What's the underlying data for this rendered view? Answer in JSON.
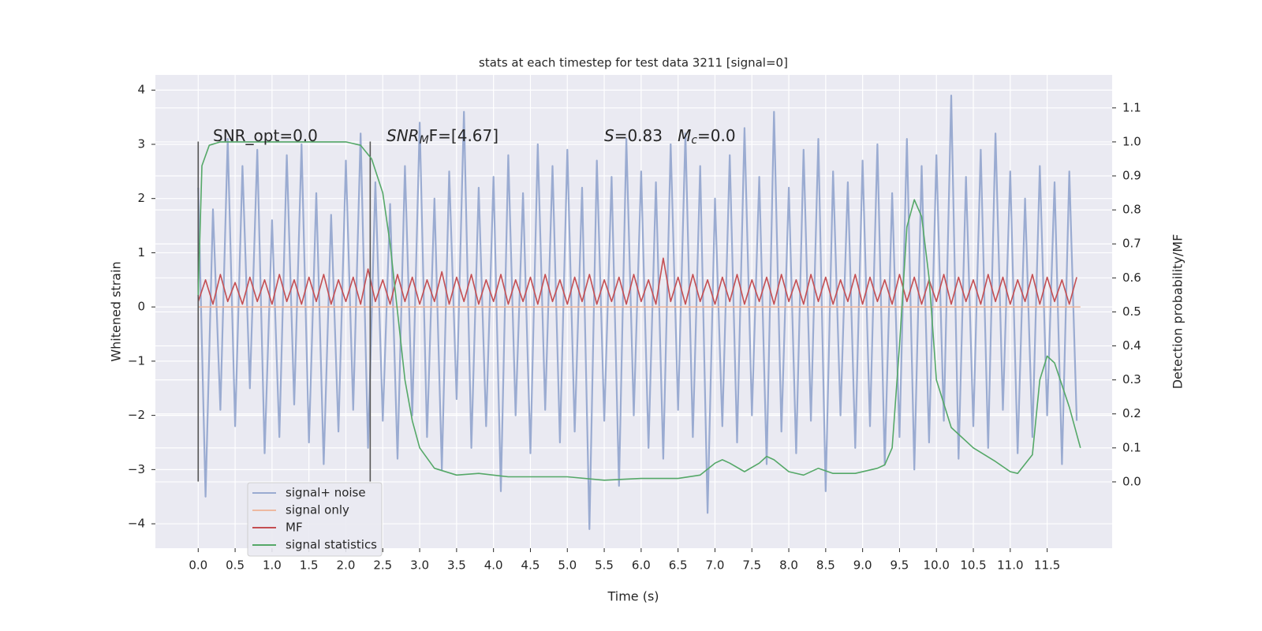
{
  "chart_data": {
    "type": "line",
    "title": "stats at each timestep for test data 3211 [signal=0]",
    "xlabel": "Time (s)",
    "ylabel": "Whitened strain",
    "y2label": "Detection probability/MF",
    "xlim": [
      -0.58,
      12.38
    ],
    "ylim": [
      -4.45,
      4.28
    ],
    "y2lim": [
      -0.195,
      1.197
    ],
    "xticks": [
      {
        "value": 0,
        "label": "0.0"
      },
      0.5,
      {
        "value": 1,
        "label": "1.0"
      },
      1.5,
      {
        "value": 2,
        "label": "2.0"
      },
      2.5,
      {
        "value": 3,
        "label": "3.0"
      },
      3.5,
      {
        "value": 4,
        "label": "4.0"
      },
      4.5,
      {
        "value": 5,
        "label": "5.0"
      },
      5.5,
      {
        "value": 6,
        "label": "6.0"
      },
      6.5,
      {
        "value": 7,
        "label": "7.0"
      },
      7.5,
      {
        "value": 8,
        "label": "8.0"
      },
      8.5,
      {
        "value": 9,
        "label": "9.0"
      },
      9.5,
      {
        "value": 10,
        "label": "10.0"
      },
      10.5,
      {
        "value": 11,
        "label": "11.0"
      },
      11.5
    ],
    "yticks": [
      {
        "value": -4,
        "label": "−4"
      },
      {
        "value": -3,
        "label": "−3"
      },
      {
        "value": -2,
        "label": "−2"
      },
      {
        "value": -1,
        "label": "−1"
      },
      0,
      1,
      2,
      3,
      4
    ],
    "y2ticks": [
      {
        "value": 0,
        "label": "0.0"
      },
      0.1,
      0.2,
      0.3,
      0.4,
      0.5,
      0.6,
      0.7,
      0.8,
      0.9,
      {
        "value": 1,
        "label": "1.0"
      },
      1.1
    ],
    "grid": true,
    "x": [
      0,
      0.1,
      0.2,
      0.3,
      0.4,
      0.5,
      0.6,
      0.7,
      0.8,
      0.9,
      1,
      1.1,
      1.2,
      1.3,
      1.4,
      1.5,
      1.6,
      1.7,
      1.8,
      1.9,
      2,
      2.1,
      2.2,
      2.3,
      2.4,
      2.5,
      2.6,
      2.7,
      2.8,
      2.9,
      3,
      3.1,
      3.2,
      3.3,
      3.4,
      3.5,
      3.6,
      3.7,
      3.8,
      3.9,
      4,
      4.1,
      4.2,
      4.3,
      4.4,
      4.5,
      4.6,
      4.7,
      4.8,
      4.9,
      5,
      5.1,
      5.2,
      5.3,
      5.4,
      5.5,
      5.6,
      5.7,
      5.8,
      5.9,
      6,
      6.1,
      6.2,
      6.3,
      6.4,
      6.5,
      6.6,
      6.7,
      6.8,
      6.9,
      7,
      7.1,
      7.2,
      7.3,
      7.4,
      7.5,
      7.6,
      7.7,
      7.8,
      7.9,
      8,
      8.1,
      8.2,
      8.3,
      8.4,
      8.5,
      8.6,
      8.7,
      8.8,
      8.9,
      9,
      9.1,
      9.2,
      9.3,
      9.4,
      9.5,
      9.6,
      9.7,
      9.8,
      9.9,
      10,
      10.1,
      10.2,
      10.3,
      10.4,
      10.5,
      10.6,
      10.7,
      10.8,
      10.9,
      11,
      11.1,
      11.2,
      11.3,
      11.4,
      11.5,
      11.6,
      11.7,
      11.8,
      11.9
    ],
    "series": [
      {
        "name": "signal+ noise",
        "color": "#9aabd1",
        "values": [
          2.2,
          -3.5,
          1.8,
          -1.9,
          3.1,
          -2.2,
          2.6,
          -1.5,
          2.9,
          -2.7,
          1.6,
          -2.4,
          2.8,
          -1.8,
          3.0,
          -2.5,
          2.1,
          -2.9,
          1.7,
          -2.3,
          2.7,
          -1.9,
          3.2,
          -2.6,
          2.3,
          -2.1,
          1.9,
          -2.8,
          2.6,
          -2.0,
          3.4,
          -2.4,
          2.0,
          -3.0,
          2.5,
          -1.7,
          3.6,
          -2.6,
          2.2,
          -2.2,
          2.4,
          -3.4,
          2.8,
          -2.0,
          2.1,
          -2.7,
          3.0,
          -1.9,
          2.6,
          -2.5,
          2.9,
          -2.3,
          2.2,
          -4.1,
          2.7,
          -2.1,
          2.4,
          -3.3,
          3.1,
          -2.0,
          2.5,
          -2.6,
          2.3,
          -2.8,
          3.0,
          -1.9,
          3.2,
          -2.4,
          2.6,
          -3.8,
          2.0,
          -2.2,
          2.8,
          -2.5,
          3.3,
          -2.0,
          2.4,
          -2.9,
          3.6,
          -2.3,
          2.2,
          -2.7,
          2.9,
          -2.1,
          3.1,
          -3.4,
          2.5,
          -2.0,
          2.3,
          -2.6,
          2.7,
          -2.2,
          3.0,
          -2.9,
          2.1,
          -2.4,
          3.1,
          -3.0,
          2.6,
          -2.5,
          2.8,
          -2.1,
          3.9,
          -2.8,
          2.4,
          -2.2,
          2.9,
          -2.6,
          3.2,
          -1.9,
          2.5,
          -2.7,
          2.0,
          -2.4,
          2.6,
          -2.0,
          2.3,
          -2.9,
          2.5,
          -2.1
        ]
      },
      {
        "name": "signal only",
        "color": "#eeb9a1",
        "x": [
          0,
          11.95
        ],
        "values": [
          0,
          0
        ]
      },
      {
        "name": "MF",
        "color": "#c44e52",
        "values": [
          0.1,
          0.5,
          0.05,
          0.6,
          0.1,
          0.45,
          0.05,
          0.55,
          0.1,
          0.5,
          0.05,
          0.6,
          0.1,
          0.5,
          0.05,
          0.55,
          0.1,
          0.6,
          0.05,
          0.5,
          0.1,
          0.55,
          0.05,
          0.7,
          0.1,
          0.5,
          0.05,
          0.6,
          0.1,
          0.55,
          0.05,
          0.5,
          0.1,
          0.65,
          0.05,
          0.55,
          0.1,
          0.6,
          0.05,
          0.5,
          0.1,
          0.6,
          0.05,
          0.5,
          0.1,
          0.55,
          0.05,
          0.6,
          0.1,
          0.5,
          0.05,
          0.55,
          0.1,
          0.6,
          0.05,
          0.5,
          0.1,
          0.55,
          0.05,
          0.6,
          0.1,
          0.5,
          0.05,
          0.9,
          0.1,
          0.55,
          0.05,
          0.6,
          0.1,
          0.5,
          0.05,
          0.55,
          0.1,
          0.6,
          0.05,
          0.5,
          0.1,
          0.55,
          0.05,
          0.6,
          0.1,
          0.5,
          0.05,
          0.6,
          0.1,
          0.55,
          0.05,
          0.5,
          0.1,
          0.6,
          0.05,
          0.55,
          0.1,
          0.5,
          0.05,
          0.6,
          0.1,
          0.55,
          0.05,
          0.5,
          0.1,
          0.6,
          0.05,
          0.55,
          0.1,
          0.5,
          0.05,
          0.6,
          0.1,
          0.55,
          0.05,
          0.5,
          0.1,
          0.6,
          0.05,
          0.55,
          0.1,
          0.5,
          0.05,
          0.55
        ]
      },
      {
        "name": "signal statistics",
        "color": "#55a868",
        "axis": "y2",
        "x": [
          0,
          0.05,
          0.15,
          0.3,
          1.0,
          1.5,
          2.0,
          2.2,
          2.35,
          2.5,
          2.6,
          2.7,
          2.8,
          2.9,
          3.0,
          3.2,
          3.5,
          3.8,
          4.2,
          5.0,
          5.5,
          6.0,
          6.5,
          6.8,
          7.0,
          7.1,
          7.2,
          7.4,
          7.6,
          7.7,
          7.8,
          8.0,
          8.2,
          8.4,
          8.6,
          8.9,
          9.2,
          9.3,
          9.4,
          9.5,
          9.6,
          9.7,
          9.8,
          9.9,
          10.0,
          10.2,
          10.5,
          10.8,
          11.0,
          11.1,
          11.3,
          11.4,
          11.5,
          11.6,
          11.8,
          11.95
        ],
        "values": [
          0.55,
          0.93,
          0.99,
          1.0,
          1.0,
          1.0,
          1.0,
          0.99,
          0.95,
          0.85,
          0.7,
          0.5,
          0.3,
          0.18,
          0.1,
          0.04,
          0.02,
          0.025,
          0.015,
          0.015,
          0.005,
          0.01,
          0.01,
          0.02,
          0.055,
          0.065,
          0.055,
          0.03,
          0.055,
          0.075,
          0.065,
          0.03,
          0.02,
          0.04,
          0.025,
          0.025,
          0.04,
          0.05,
          0.1,
          0.4,
          0.75,
          0.83,
          0.78,
          0.6,
          0.3,
          0.16,
          0.1,
          0.06,
          0.03,
          0.025,
          0.08,
          0.3,
          0.37,
          0.35,
          0.22,
          0.1
        ]
      }
    ],
    "vlines": {
      "x": [
        0,
        2.33
      ],
      "ymin": -3.22,
      "ymax": 3.05,
      "color": "#555555"
    },
    "annotations": [
      [
        {
          "text": "SNR_opt=0.0",
          "italic": false,
          "sub": false
        }
      ],
      [
        {
          "text": "SNR",
          "italic": true,
          "sub": false
        },
        {
          "text": "M",
          "italic": true,
          "sub": true
        },
        {
          "text": "F=[4.67]",
          "italic": false,
          "sub": false
        }
      ],
      [
        {
          "text": "S",
          "italic": true,
          "sub": false
        },
        {
          "text": "=0.83   ",
          "italic": false,
          "sub": false
        },
        {
          "text": "M",
          "italic": true,
          "sub": false
        },
        {
          "text": "c",
          "italic": true,
          "sub": true
        },
        {
          "text": "=0.0",
          "italic": false,
          "sub": false
        }
      ]
    ],
    "legend": "lower left"
  }
}
